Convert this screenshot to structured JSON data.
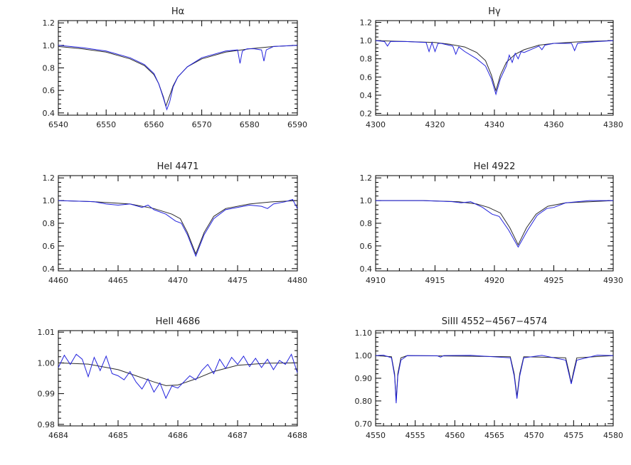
{
  "chart_data": [
    {
      "type": "line",
      "title": "Hα",
      "xlim": [
        6540,
        6590
      ],
      "ylim": [
        0.38,
        1.22
      ],
      "xticks": [
        6540,
        6550,
        6560,
        6570,
        6580,
        6590
      ],
      "xtick_labels": [
        "6540",
        "6550",
        "6560",
        "6570",
        "6580",
        "6590"
      ],
      "yticks": [
        0.4,
        0.6,
        0.8,
        1.0,
        1.2
      ],
      "ytick_labels": [
        "0.4",
        "0.6",
        "0.8",
        "1.0",
        "1.2"
      ],
      "series": [
        {
          "role": "model",
          "color": "#2a2a2a",
          "x": [
            6540,
            6545,
            6550,
            6555,
            6558,
            6560,
            6561,
            6562,
            6562.5,
            6563,
            6564,
            6565,
            6567,
            6570,
            6575,
            6580,
            6585,
            6590
          ],
          "y": [
            0.99,
            0.97,
            0.94,
            0.88,
            0.82,
            0.74,
            0.66,
            0.54,
            0.46,
            0.52,
            0.64,
            0.72,
            0.81,
            0.88,
            0.94,
            0.97,
            0.99,
            1.0
          ]
        },
        {
          "role": "observed",
          "color": "#2222dd",
          "x": [
            6540,
            6545,
            6550,
            6555,
            6558,
            6560,
            6561,
            6562,
            6562.7,
            6563.3,
            6564,
            6565,
            6567,
            6570,
            6575,
            6577.5,
            6578,
            6578.5,
            6579.5,
            6581,
            6582.5,
            6583,
            6583.5,
            6585,
            6590
          ],
          "y": [
            1.0,
            0.98,
            0.95,
            0.89,
            0.83,
            0.75,
            0.66,
            0.53,
            0.43,
            0.5,
            0.63,
            0.72,
            0.81,
            0.89,
            0.95,
            0.96,
            0.84,
            0.95,
            0.97,
            0.97,
            0.96,
            0.86,
            0.96,
            0.99,
            1.0
          ]
        }
      ]
    },
    {
      "type": "line",
      "title": "Hγ",
      "xlim": [
        4300,
        4380
      ],
      "ylim": [
        0.18,
        1.22
      ],
      "xticks": [
        4300,
        4320,
        4340,
        4360,
        4380
      ],
      "xtick_labels": [
        "4300",
        "4320",
        "4340",
        "4360",
        "4380"
      ],
      "yticks": [
        0.2,
        0.4,
        0.6,
        0.8,
        1.0,
        1.2
      ],
      "ytick_labels": [
        "0.2",
        "0.4",
        "0.6",
        "0.8",
        "1.0",
        "1.2"
      ],
      "series": [
        {
          "role": "model",
          "color": "#2a2a2a",
          "x": [
            4300,
            4310,
            4320,
            4325,
            4330,
            4334,
            4337,
            4339,
            4340.5,
            4342,
            4344,
            4347,
            4350,
            4355,
            4360,
            4370,
            4380
          ],
          "y": [
            1.0,
            0.99,
            0.98,
            0.96,
            0.93,
            0.87,
            0.78,
            0.62,
            0.45,
            0.62,
            0.76,
            0.85,
            0.9,
            0.95,
            0.97,
            0.99,
            1.0
          ]
        },
        {
          "role": "observed",
          "color": "#2222dd",
          "x": [
            4300,
            4303,
            4304,
            4305,
            4310,
            4317,
            4318,
            4319,
            4320,
            4321,
            4322,
            4326,
            4327,
            4328,
            4330,
            4334,
            4337,
            4339,
            4340.5,
            4342,
            4344,
            4345,
            4346,
            4347,
            4348,
            4349,
            4350,
            4355,
            4356,
            4357,
            4360,
            4366,
            4367,
            4368,
            4370,
            4375,
            4380
          ],
          "y": [
            1.0,
            0.99,
            0.94,
            0.99,
            0.99,
            0.98,
            0.88,
            0.98,
            0.88,
            0.97,
            0.97,
            0.94,
            0.85,
            0.93,
            0.88,
            0.8,
            0.72,
            0.58,
            0.41,
            0.58,
            0.72,
            0.84,
            0.76,
            0.86,
            0.8,
            0.88,
            0.87,
            0.94,
            0.9,
            0.95,
            0.97,
            0.97,
            0.89,
            0.97,
            0.98,
            0.99,
            1.0
          ]
        }
      ]
    },
    {
      "type": "line",
      "title": "HeI 4471",
      "xlim": [
        4460,
        4480
      ],
      "ylim": [
        0.38,
        1.22
      ],
      "xticks": [
        4460,
        4465,
        4470,
        4475,
        4480
      ],
      "xtick_labels": [
        "4460",
        "4465",
        "4470",
        "4475",
        "4480"
      ],
      "yticks": [
        0.4,
        0.6,
        0.8,
        1.0,
        1.2
      ],
      "ytick_labels": [
        "0.4",
        "0.6",
        "0.8",
        "1.0",
        "1.2"
      ],
      "series": [
        {
          "role": "model",
          "color": "#2a2a2a",
          "x": [
            4460,
            4463,
            4466,
            4468,
            4469.5,
            4470.2,
            4470.8,
            4471.5,
            4472.2,
            4473,
            4474,
            4476,
            4478,
            4480
          ],
          "y": [
            1.0,
            0.99,
            0.97,
            0.93,
            0.88,
            0.84,
            0.72,
            0.53,
            0.72,
            0.86,
            0.93,
            0.97,
            0.99,
            1.0
          ]
        },
        {
          "role": "observed",
          "color": "#2222dd",
          "x": [
            4460,
            4463,
            4464,
            4465,
            4466,
            4467,
            4467.5,
            4468,
            4469,
            4469.8,
            4470.3,
            4470.8,
            4471.5,
            4472.2,
            4473,
            4474,
            4476,
            4477,
            4477.5,
            4478,
            4479,
            4479.6,
            4480
          ],
          "y": [
            1.0,
            0.99,
            0.97,
            0.96,
            0.97,
            0.94,
            0.96,
            0.92,
            0.88,
            0.82,
            0.8,
            0.7,
            0.51,
            0.7,
            0.84,
            0.92,
            0.96,
            0.95,
            0.93,
            0.97,
            0.99,
            1.01,
            0.93
          ]
        }
      ]
    },
    {
      "type": "line",
      "title": "HeI 4922",
      "xlim": [
        4910,
        4930
      ],
      "ylim": [
        0.38,
        1.22
      ],
      "xticks": [
        4910,
        4915,
        4920,
        4925,
        4930
      ],
      "xtick_labels": [
        "4910",
        "4915",
        "4920",
        "4925",
        "4930"
      ],
      "yticks": [
        0.4,
        0.6,
        0.8,
        1.0,
        1.2
      ],
      "ytick_labels": [
        "0.4",
        "0.6",
        "0.8",
        "1.0",
        "1.2"
      ],
      "series": [
        {
          "role": "model",
          "color": "#2a2a2a",
          "x": [
            4910,
            4914,
            4917,
            4918.5,
            4919.5,
            4920.5,
            4921.3,
            4922,
            4922.7,
            4923.5,
            4924.5,
            4926,
            4928,
            4930
          ],
          "y": [
            1.0,
            1.0,
            0.99,
            0.97,
            0.94,
            0.89,
            0.76,
            0.61,
            0.76,
            0.88,
            0.95,
            0.98,
            0.99,
            1.0
          ]
        },
        {
          "role": "observed",
          "color": "#2222dd",
          "x": [
            4910,
            4914,
            4916.5,
            4917.2,
            4918,
            4919,
            4919.8,
            4920.4,
            4921.2,
            4922,
            4922.8,
            4923.6,
            4924.4,
            4925,
            4926,
            4928,
            4930
          ],
          "y": [
            1.0,
            1.0,
            0.99,
            0.98,
            0.99,
            0.94,
            0.88,
            0.86,
            0.74,
            0.59,
            0.74,
            0.87,
            0.93,
            0.94,
            0.98,
            1.0,
            1.0
          ]
        }
      ]
    },
    {
      "type": "line",
      "title": "HeII 4686",
      "xlim": [
        4684,
        4688
      ],
      "ylim": [
        0.9795,
        1.0105
      ],
      "xticks": [
        4684,
        4685,
        4686,
        4687,
        4688
      ],
      "xtick_labels": [
        "4684",
        "4685",
        "4686",
        "4687",
        "4688"
      ],
      "yticks": [
        0.98,
        0.99,
        1.0,
        1.01
      ],
      "ytick_labels": [
        "0.98",
        "0.99",
        "1.00",
        "1.01"
      ],
      "series": [
        {
          "role": "model",
          "color": "#2a2a2a",
          "x": [
            4684,
            4684.5,
            4685,
            4685.3,
            4685.6,
            4685.8,
            4686,
            4686.3,
            4686.6,
            4687,
            4687.5,
            4688
          ],
          "y": [
            1.0,
            0.9996,
            0.9978,
            0.9958,
            0.9938,
            0.9926,
            0.9928,
            0.9948,
            0.9972,
            0.9992,
            0.9999,
            1.0
          ]
        },
        {
          "role": "observed",
          "color": "#2222dd",
          "x": [
            4684,
            4684.1,
            4684.2,
            4684.3,
            4684.4,
            4684.5,
            4684.6,
            4684.7,
            4684.8,
            4684.9,
            4685,
            4685.1,
            4685.2,
            4685.3,
            4685.4,
            4685.5,
            4685.6,
            4685.7,
            4685.8,
            4685.9,
            4686,
            4686.1,
            4686.2,
            4686.3,
            4686.4,
            4686.5,
            4686.6,
            4686.7,
            4686.8,
            4686.9,
            4687,
            4687.1,
            4687.2,
            4687.3,
            4687.4,
            4687.5,
            4687.6,
            4687.7,
            4687.8,
            4687.9,
            4688
          ],
          "y": [
            0.9985,
            1.0025,
            0.9995,
            1.0028,
            1.0012,
            0.9955,
            1.0018,
            0.9975,
            1.0022,
            0.9965,
            0.9958,
            0.9945,
            0.9972,
            0.9938,
            0.9915,
            0.9948,
            0.9905,
            0.9935,
            0.9885,
            0.9925,
            0.9918,
            0.9938,
            0.9958,
            0.9945,
            0.9975,
            0.9995,
            0.9965,
            1.0012,
            0.9982,
            1.0018,
            0.9995,
            1.0022,
            0.9988,
            1.0015,
            0.9985,
            1.0012,
            0.9978,
            1.0008,
            0.9995,
            1.0028,
            0.9968
          ]
        }
      ]
    },
    {
      "type": "line",
      "title": "SiIII 4552−4567−4574",
      "xlim": [
        4550,
        4580
      ],
      "ylim": [
        0.69,
        1.11
      ],
      "xticks": [
        4550,
        4555,
        4560,
        4565,
        4570,
        4575,
        4580
      ],
      "xtick_labels": [
        "4550",
        "4555",
        "4560",
        "4565",
        "4570",
        "4575",
        "4580"
      ],
      "yticks": [
        0.7,
        0.8,
        0.9,
        1.0,
        1.1
      ],
      "ytick_labels": [
        "0.70",
        "0.80",
        "0.90",
        "1.00",
        "1.10"
      ],
      "series": [
        {
          "role": "model",
          "color": "#2a2a2a",
          "x": [
            4550,
            4552,
            4552.4,
            4552.6,
            4552.8,
            4553.2,
            4554,
            4567,
            4567.5,
            4567.85,
            4568.2,
            4568.7,
            4574,
            4574.4,
            4574.7,
            4575,
            4575.4,
            4580
          ],
          "y": [
            1.0,
            0.995,
            0.92,
            0.8,
            0.92,
            0.99,
            1.0,
            0.995,
            0.92,
            0.82,
            0.92,
            0.995,
            0.99,
            0.93,
            0.88,
            0.93,
            0.99,
            1.0
          ]
        },
        {
          "role": "observed",
          "color": "#2222dd",
          "x": [
            4550,
            4551,
            4552,
            4552.4,
            4552.6,
            4552.8,
            4553.2,
            4554,
            4557.8,
            4558.2,
            4558.6,
            4562,
            4567,
            4567.5,
            4567.85,
            4568.2,
            4568.7,
            4571,
            4574,
            4574.4,
            4574.7,
            4575,
            4575.4,
            4578,
            4580
          ],
          "y": [
            1.0,
            1.002,
            0.99,
            0.91,
            0.79,
            0.91,
            0.98,
            1.0,
            0.999,
            0.993,
            1.0,
            1.001,
            0.99,
            0.91,
            0.81,
            0.91,
            0.99,
            1.001,
            0.98,
            0.92,
            0.875,
            0.92,
            0.98,
            1.002,
            1.0
          ]
        }
      ]
    }
  ]
}
